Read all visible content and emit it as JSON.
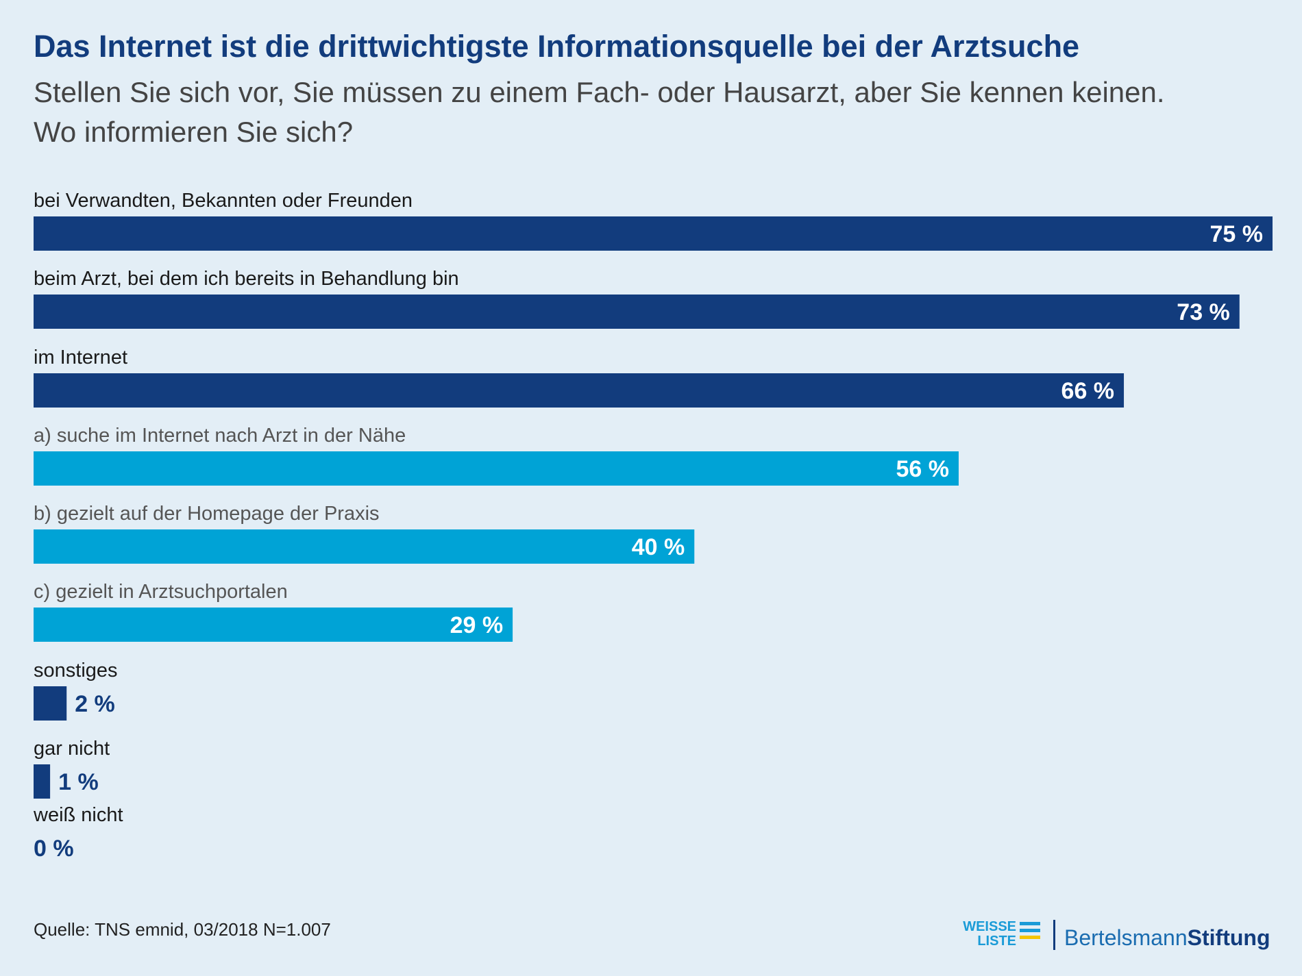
{
  "title": "Das Internet ist die drittwichtigste Informationsquelle bei der Arztsuche",
  "subtitle_lines": [
    "Stellen Sie sich vor, Sie müssen zu einem Fach- oder Hausarzt, aber Sie kennen keinen.",
    "Wo informieren Sie sich?"
  ],
  "source": "Quelle: TNS emnid, 03/2018 N=1.007",
  "logos": {
    "weisse_liste_line1": "WEISSE",
    "weisse_liste_line2": "LISTE",
    "bertelsmann": "Bertelsmann",
    "stiftung": "Stiftung",
    "stripe_colors": [
      "#1a9bd7",
      "#1a9bd7",
      "#f5c400"
    ]
  },
  "colors": {
    "dark_bar": "#123c7d",
    "light_bar": "#00a3d6",
    "title": "#123c7d"
  },
  "chart_data": {
    "type": "bar",
    "orientation": "horizontal",
    "grid": false,
    "xlim": [
      0,
      75
    ],
    "bars": [
      {
        "label": "bei Verwandten, Bekannten oder Freunden",
        "value": 75,
        "value_label": "75 %",
        "style": "main"
      },
      {
        "label": "beim Arzt, bei dem ich bereits in Behandlung bin",
        "value": 73,
        "value_label": "73 %",
        "style": "main"
      },
      {
        "label": "im Internet",
        "value": 66,
        "value_label": "66 %",
        "style": "main"
      },
      {
        "label": "a) suche im Internet nach Arzt in der Nähe",
        "value": 56,
        "value_label": "56 %",
        "style": "sub"
      },
      {
        "label": "b) gezielt auf der Homepage der Praxis",
        "value": 40,
        "value_label": "40 %",
        "style": "sub"
      },
      {
        "label": "c) gezielt in Arztsuchportalen",
        "value": 29,
        "value_label": "29 %",
        "style": "sub"
      },
      {
        "label": "sonstiges",
        "value": 2,
        "value_label": "2 %",
        "style": "main"
      },
      {
        "label": "gar nicht",
        "value": 1,
        "value_label": "1 %",
        "style": "main"
      },
      {
        "label": "weiß nicht",
        "value": 0,
        "value_label": "0 %",
        "style": "main"
      }
    ]
  }
}
